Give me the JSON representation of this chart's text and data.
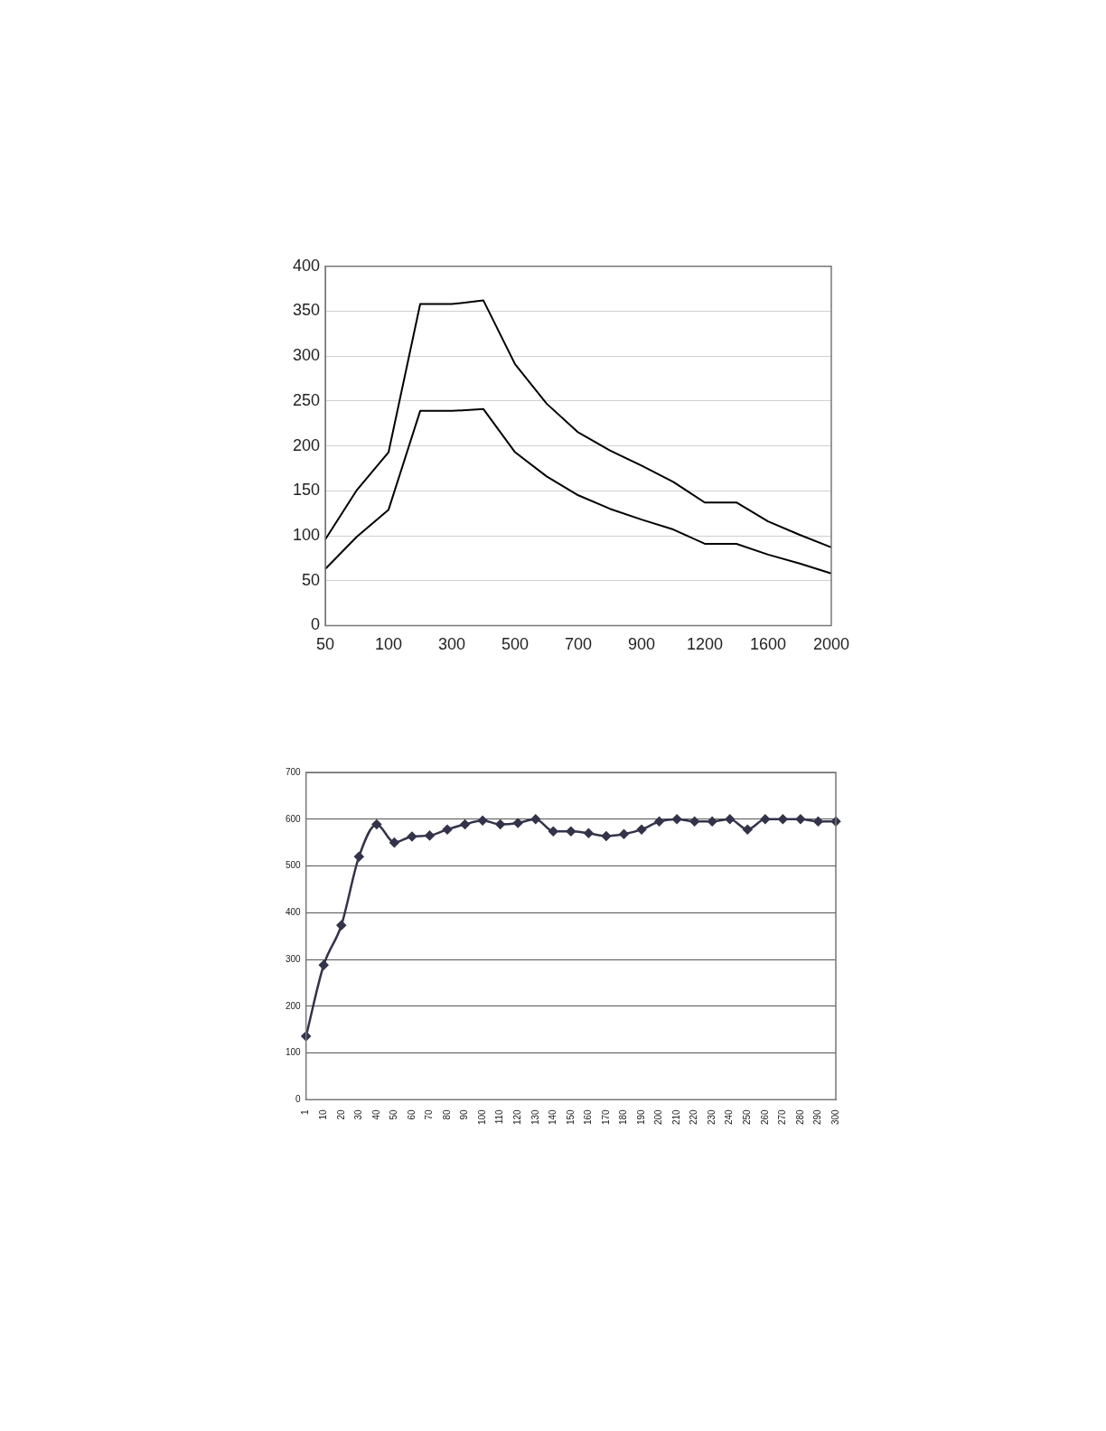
{
  "chart_data": [
    {
      "type": "line",
      "categories": [
        "50",
        null,
        "100",
        null,
        "300",
        null,
        "500",
        null,
        "700",
        null,
        "900",
        null,
        "1200",
        null,
        "1600",
        null,
        "2000"
      ],
      "series": [
        {
          "color": "#000000",
          "values": [
            96,
            151,
            193,
            358,
            358,
            362,
            291,
            247,
            215,
            195,
            178,
            160,
            137,
            137,
            116,
            101,
            87
          ]
        },
        {
          "color": "#000000",
          "values": [
            63,
            99,
            129,
            239,
            239,
            241,
            193,
            166,
            145,
            130,
            118,
            107,
            91,
            91,
            79,
            69,
            58
          ]
        }
      ],
      "ylim": [
        0,
        400
      ],
      "yticks": [
        0,
        50,
        100,
        150,
        200,
        250,
        300,
        350,
        400
      ],
      "grid": "y",
      "marker": "none",
      "line_style": "solid"
    },
    {
      "type": "line",
      "categories": [
        "1",
        "10",
        "20",
        "30",
        "40",
        "50",
        "60",
        "70",
        "80",
        "90",
        "100",
        "110",
        "120",
        "130",
        "140",
        "150",
        "160",
        "170",
        "180",
        "190",
        "200",
        "210",
        "220",
        "230",
        "240",
        "250",
        "260",
        "270",
        "280",
        "290",
        "300"
      ],
      "series": [
        {
          "color": "#33334a",
          "values": [
            136,
            288,
            373,
            520,
            589,
            550,
            563,
            565,
            578,
            589,
            597,
            589,
            592,
            600,
            574,
            574,
            570,
            564,
            568,
            578,
            595,
            600,
            595,
            595,
            600,
            578,
            600,
            600,
            600,
            595,
            595
          ]
        }
      ],
      "ylim": [
        0,
        700
      ],
      "yticks": [
        0,
        100,
        200,
        300,
        400,
        500,
        600,
        700
      ],
      "grid": "y",
      "marker": "diamond",
      "line_style": "solid"
    }
  ]
}
